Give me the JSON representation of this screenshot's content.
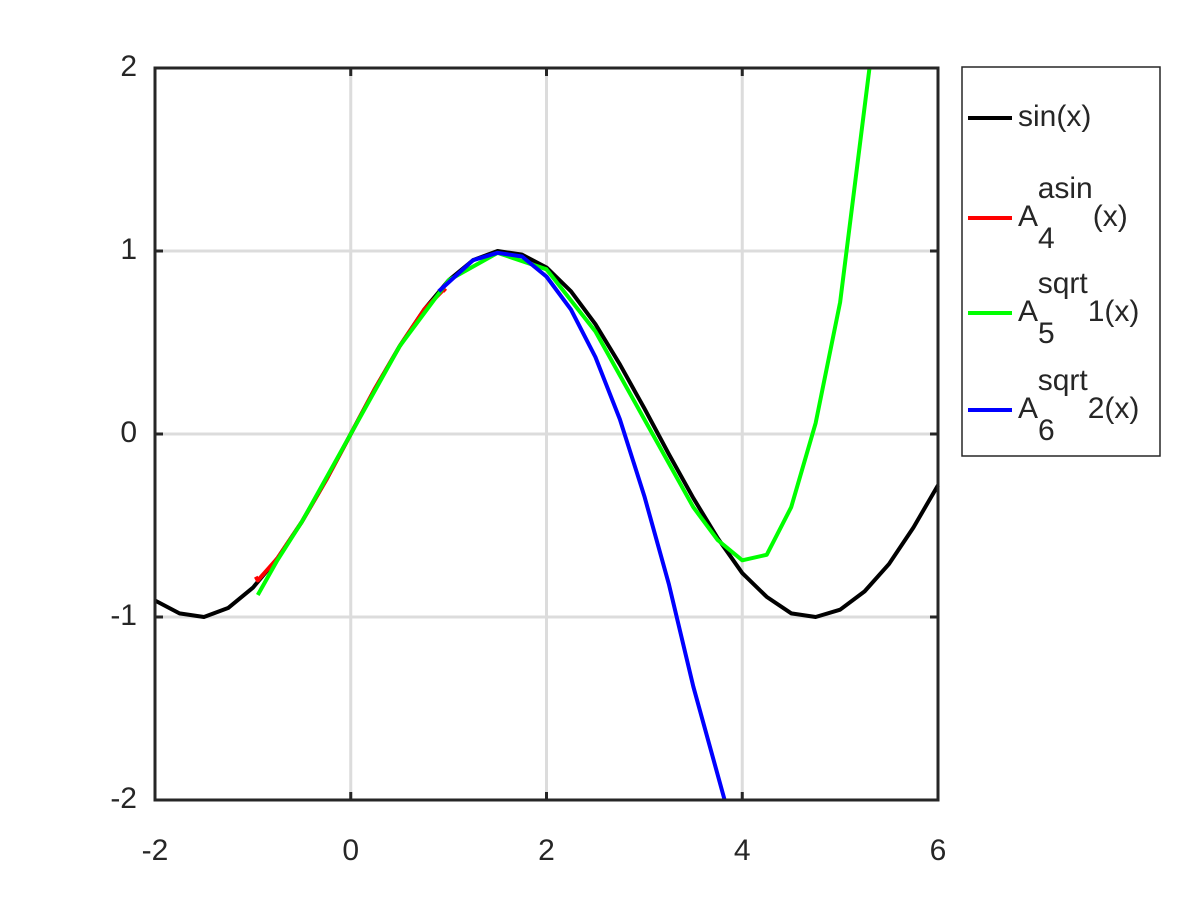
{
  "chart_data": {
    "type": "line",
    "xlim": [
      -2,
      6
    ],
    "ylim": [
      -2,
      2
    ],
    "xticks": [
      -2,
      0,
      2,
      4,
      6
    ],
    "yticks": [
      -2,
      -1,
      0,
      1,
      2
    ],
    "grid": true,
    "legend": "outside-right",
    "series": [
      {
        "name": "sin(x)",
        "color": "#000000",
        "x": [
          -2,
          -1.75,
          -1.5,
          -1.25,
          -1,
          -0.75,
          -0.5,
          -0.25,
          0,
          0.25,
          0.5,
          0.75,
          1,
          1.25,
          1.5,
          1.75,
          2,
          2.25,
          2.5,
          2.75,
          3,
          3.25,
          3.5,
          3.75,
          4,
          4.25,
          4.5,
          4.75,
          5,
          5.25,
          5.5,
          5.75,
          6
        ],
        "values": [
          -0.91,
          -0.98,
          -1.0,
          -0.95,
          -0.84,
          -0.68,
          -0.48,
          -0.25,
          0,
          0.25,
          0.48,
          0.68,
          0.84,
          0.95,
          1.0,
          0.98,
          0.91,
          0.78,
          0.6,
          0.38,
          0.14,
          -0.11,
          -0.35,
          -0.57,
          -0.76,
          -0.89,
          -0.98,
          -1.0,
          -0.96,
          -0.86,
          -0.71,
          -0.51,
          -0.28
        ]
      },
      {
        "name": {
          "base": "A",
          "sub": "4",
          "sup": "asin",
          "tail": "(x)"
        },
        "color": "#ff0000",
        "x": [
          -0.97,
          -0.95,
          -0.75,
          -0.5,
          -0.25,
          0,
          0.25,
          0.5,
          0.75,
          0.95,
          0.97
        ],
        "values": [
          -0.78,
          -0.8,
          -0.68,
          -0.48,
          -0.25,
          0,
          0.25,
          0.48,
          0.68,
          0.79,
          0.78
        ]
      },
      {
        "name": {
          "base": "A",
          "sub": "5",
          "sup": "sqrt",
          "tail": "1(x)"
        },
        "color": "#00ff00",
        "x": [
          -0.95,
          -0.75,
          -0.5,
          0,
          0.5,
          1,
          1.5,
          2,
          2.5,
          3,
          3.5,
          3.75,
          4,
          4.25,
          4.5,
          4.75,
          5,
          5.3
        ],
        "values": [
          -0.88,
          -0.69,
          -0.48,
          0,
          0.48,
          0.84,
          0.99,
          0.9,
          0.56,
          0.08,
          -0.4,
          -0.58,
          -0.69,
          -0.66,
          -0.4,
          0.06,
          0.72,
          2.0
        ]
      },
      {
        "name": {
          "base": "A",
          "sub": "6",
          "sup": "sqrt",
          "tail": "2(x)"
        },
        "color": "#0000ff",
        "x": [
          0.9,
          1.25,
          1.5,
          1.75,
          2,
          2.25,
          2.5,
          2.75,
          3,
          3.25,
          3.5,
          3.82
        ],
        "values": [
          0.78,
          0.95,
          0.99,
          0.97,
          0.86,
          0.68,
          0.42,
          0.08,
          -0.34,
          -0.82,
          -1.38,
          -2.0
        ]
      }
    ]
  }
}
